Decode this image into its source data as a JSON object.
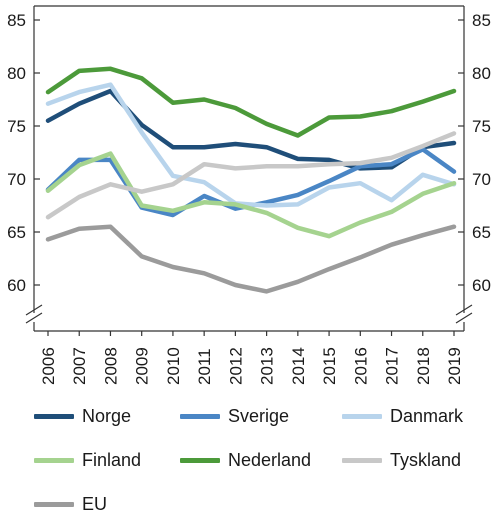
{
  "chart_data": {
    "type": "line",
    "title": "",
    "xlabel": "",
    "ylabel": "",
    "ylim": [
      60,
      85
    ],
    "yticks": [
      60,
      65,
      70,
      75,
      80,
      85
    ],
    "y_axis_break": true,
    "dual_y_axis_labels": true,
    "grid": false,
    "legend_placement": "bottom",
    "x": [
      "2006",
      "2007",
      "2008",
      "2009",
      "2010",
      "2011",
      "2012",
      "2013",
      "2014",
      "2015",
      "2016",
      "2017",
      "2018",
      "2019"
    ],
    "series": [
      {
        "name": "Norge",
        "color": "#1f4e79",
        "values": [
          75.5,
          77.1,
          78.3,
          75.1,
          73.0,
          73.0,
          73.3,
          73.0,
          71.9,
          71.8,
          71.0,
          71.1,
          73.0,
          73.4
        ]
      },
      {
        "name": "Sverige",
        "color": "#4a86c5",
        "values": [
          69.0,
          71.8,
          71.8,
          67.3,
          66.6,
          68.4,
          67.2,
          67.8,
          68.5,
          69.8,
          71.2,
          71.4,
          72.8,
          70.7
        ]
      },
      {
        "name": "Danmark",
        "color": "#b8d4ec",
        "values": [
          77.1,
          78.2,
          78.9,
          74.4,
          70.3,
          69.7,
          67.7,
          67.5,
          67.6,
          69.2,
          69.6,
          68.0,
          70.4,
          69.5
        ]
      },
      {
        "name": "Finland",
        "color": "#a5d38f",
        "values": [
          68.9,
          71.3,
          72.4,
          67.5,
          67.0,
          67.8,
          67.6,
          66.8,
          65.4,
          64.6,
          65.9,
          66.9,
          68.6,
          69.6
        ]
      },
      {
        "name": "Nederland",
        "color": "#4c9a3a",
        "values": [
          78.2,
          80.2,
          80.4,
          79.5,
          77.2,
          77.5,
          76.7,
          75.2,
          74.1,
          75.8,
          75.9,
          76.4,
          77.3,
          78.3
        ]
      },
      {
        "name": "Tyskland",
        "color": "#c8c8c8",
        "values": [
          66.4,
          68.3,
          69.5,
          68.8,
          69.5,
          71.4,
          71.0,
          71.2,
          71.2,
          71.4,
          71.5,
          72.0,
          73.1,
          74.3
        ]
      },
      {
        "name": "EU",
        "color": "#9b9b9b",
        "values": [
          64.3,
          65.3,
          65.5,
          62.7,
          61.7,
          61.1,
          60.0,
          59.4,
          60.3,
          61.5,
          62.6,
          63.8,
          64.7,
          65.5
        ]
      }
    ]
  }
}
